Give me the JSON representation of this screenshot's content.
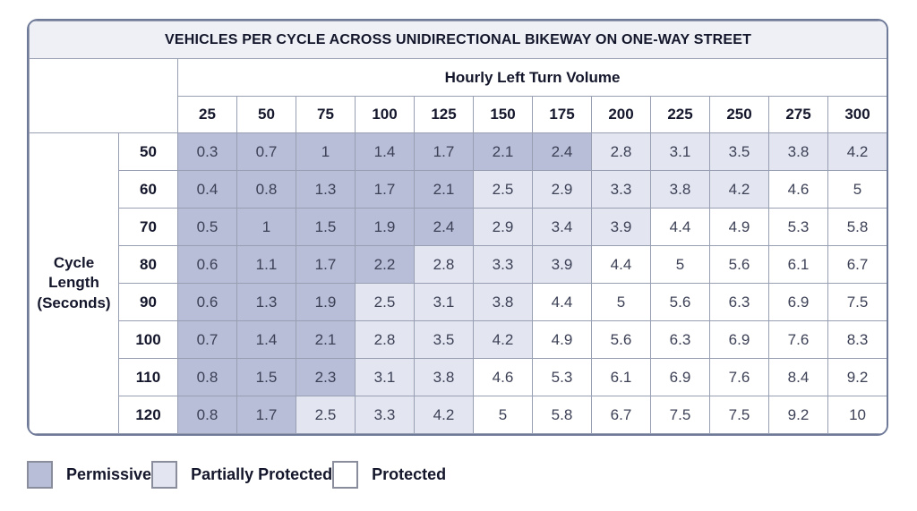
{
  "table": {
    "title": "VEHICLES PER CYCLE ACROSS UNIDIRECTIONAL BIKEWAY ON ONE-WAY STREET",
    "column_group_label": "Hourly Left Turn Volume",
    "row_group_label": "Cycle Length (Seconds)"
  },
  "legend": {
    "items": [
      {
        "label": "Permissive",
        "category": "permissive",
        "color": "#b8bdd8"
      },
      {
        "label": "Partially Protected",
        "category": "partial",
        "color": "#e3e6f1"
      },
      {
        "label": "Protected",
        "category": "protected",
        "color": "#ffffff"
      }
    ]
  },
  "colors": {
    "permissive": "#b8bdd8",
    "partially_protected": "#e3e6f1",
    "protected": "#ffffff",
    "title_background": "#eef0f6",
    "outer_border": "#6f7a99",
    "inner_border": "#999fb3",
    "header_text": "#14162b",
    "value_text": "#3d4156"
  },
  "chart_data": {
    "type": "heatmap",
    "title": "VEHICLES PER CYCLE ACROSS UNIDIRECTIONAL BIKEWAY ON ONE-WAY STREET",
    "xlabel": "Hourly Left Turn Volume",
    "ylabel": "Cycle Length (Seconds)",
    "columns": [
      "25",
      "50",
      "75",
      "100",
      "125",
      "150",
      "175",
      "200",
      "225",
      "250",
      "275",
      "300"
    ],
    "rows": [
      "50",
      "60",
      "70",
      "80",
      "90",
      "100",
      "110",
      "120"
    ],
    "values": [
      [
        "0.3",
        "0.7",
        "1",
        "1.4",
        "1.7",
        "2.1",
        "2.4",
        "2.8",
        "3.1",
        "3.5",
        "3.8",
        "4.2"
      ],
      [
        "0.4",
        "0.8",
        "1.3",
        "1.7",
        "2.1",
        "2.5",
        "2.9",
        "3.3",
        "3.8",
        "4.2",
        "4.6",
        "5"
      ],
      [
        "0.5",
        "1",
        "1.5",
        "1.9",
        "2.4",
        "2.9",
        "3.4",
        "3.9",
        "4.4",
        "4.9",
        "5.3",
        "5.8"
      ],
      [
        "0.6",
        "1.1",
        "1.7",
        "2.2",
        "2.8",
        "3.3",
        "3.9",
        "4.4",
        "5",
        "5.6",
        "6.1",
        "6.7"
      ],
      [
        "0.6",
        "1.3",
        "1.9",
        "2.5",
        "3.1",
        "3.8",
        "4.4",
        "5",
        "5.6",
        "6.3",
        "6.9",
        "7.5"
      ],
      [
        "0.7",
        "1.4",
        "2.1",
        "2.8",
        "3.5",
        "4.2",
        "4.9",
        "5.6",
        "6.3",
        "6.9",
        "7.6",
        "8.3"
      ],
      [
        "0.8",
        "1.5",
        "2.3",
        "3.1",
        "3.8",
        "4.6",
        "5.3",
        "6.1",
        "6.9",
        "7.6",
        "8.4",
        "9.2"
      ],
      [
        "0.8",
        "1.7",
        "2.5",
        "3.3",
        "4.2",
        "5",
        "5.8",
        "6.7",
        "7.5",
        "7.5",
        "9.2",
        "10"
      ]
    ],
    "category_thresholds": {
      "permissive_max": 2.4,
      "partially_protected_max": 4.2
    },
    "legend_entries": [
      "Permissive",
      "Partially Protected",
      "Protected"
    ],
    "legend_position": "bottom"
  }
}
